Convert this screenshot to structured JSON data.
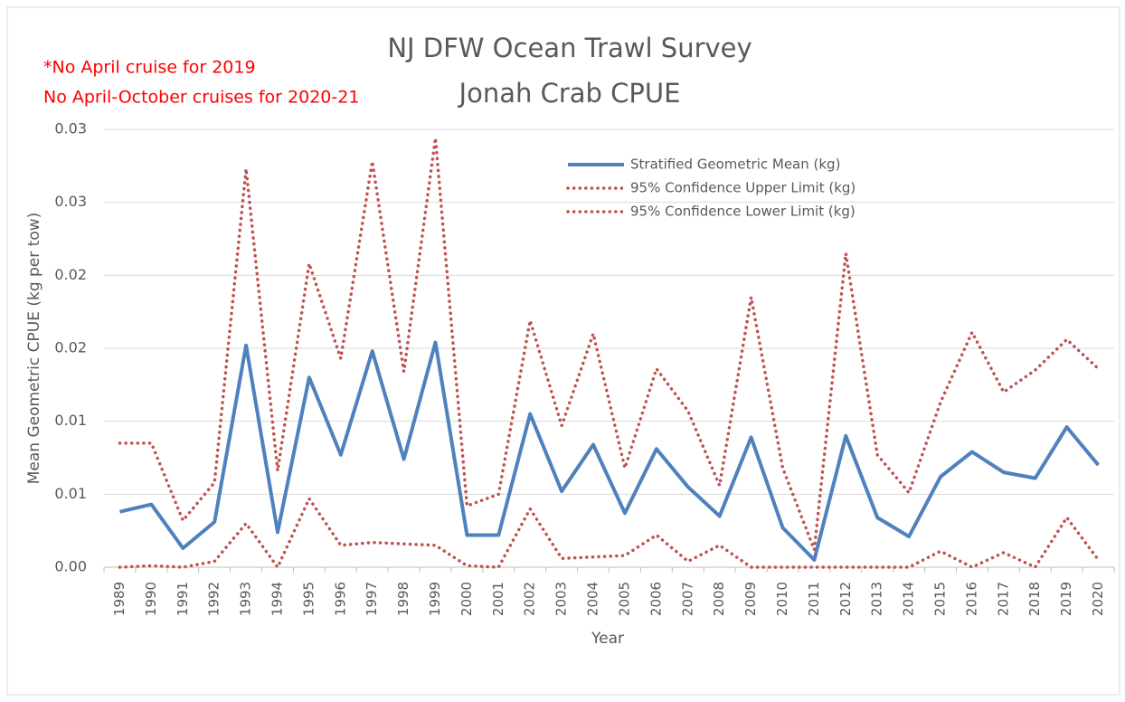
{
  "chart_data": {
    "type": "line",
    "title": "NJ DFW Ocean Trawl Survey",
    "subtitle": "Jonah Crab CPUE",
    "annotations": [
      "*No April cruise for 2019",
      "No April-October cruises for 2020-21"
    ],
    "annotation_color": "#ff0000",
    "x_label": "Year",
    "y_label": "Mean Geometric CPUE (kg per tow)",
    "categories": [
      "1989",
      "1990",
      "1991",
      "1992",
      "1993",
      "1994",
      "1995",
      "1996",
      "1997",
      "1998",
      "1999",
      "2000",
      "2001",
      "2002",
      "2003",
      "2004",
      "2005",
      "2006",
      "2007",
      "2008",
      "2009",
      "2010",
      "2011",
      "2012",
      "2013",
      "2014",
      "2015",
      "2016",
      "2017",
      "2018",
      "2019",
      "2020"
    ],
    "series": [
      {
        "name": "Stratified Geometric Mean (kg)",
        "color": "#4f81bd",
        "style": "solid",
        "values": [
          0.0038,
          0.0043,
          0.0013,
          0.0031,
          0.0152,
          0.0024,
          0.013,
          0.0077,
          0.0148,
          0.0074,
          0.0154,
          0.0022,
          0.0022,
          0.0105,
          0.0052,
          0.0084,
          0.0037,
          0.0081,
          0.0055,
          0.0035,
          0.0089,
          0.0027,
          0.0005,
          0.009,
          0.0034,
          0.0021,
          0.0062,
          0.0079,
          0.0065,
          0.0061,
          0.0096,
          0.007
        ]
      },
      {
        "name": "95% Confidence Upper Limit (kg)",
        "color": "#c0504d",
        "style": "dotted",
        "values": [
          0.0085,
          0.0085,
          0.0032,
          0.0058,
          0.0273,
          0.0066,
          0.0208,
          0.0143,
          0.0278,
          0.0134,
          0.0294,
          0.0042,
          0.005,
          0.0169,
          0.0097,
          0.016,
          0.0068,
          0.0136,
          0.0107,
          0.0056,
          0.0185,
          0.0068,
          0.0012,
          0.0215,
          0.0077,
          0.0051,
          0.0113,
          0.0161,
          0.012,
          0.0135,
          0.0156,
          0.0136
        ]
      },
      {
        "name": "95% Confidence Lower Limit (kg)",
        "color": "#c0504d",
        "style": "dotted",
        "values": [
          0,
          0.0001,
          0,
          0.0004,
          0.003,
          0,
          0.0047,
          0.0015,
          0.0017,
          0.0016,
          0.0015,
          0.0001,
          0,
          0.004,
          0.0006,
          0.0007,
          0.0008,
          0.0022,
          0.0004,
          0.0015,
          0,
          0,
          0,
          0,
          0,
          0,
          0.0011,
          0,
          0.001,
          0,
          0.0034,
          0.0005
        ]
      }
    ],
    "ylim": [
      0,
      0.03
    ],
    "yticks": [
      {
        "value": 0,
        "label": "0.00"
      },
      {
        "value": 0.005,
        "label": "0.01"
      },
      {
        "value": 0.01,
        "label": "0.01"
      },
      {
        "value": 0.015,
        "label": "0.02"
      },
      {
        "value": 0.02,
        "label": "0.02"
      },
      {
        "value": 0.025,
        "label": "0.03"
      },
      {
        "value": 0.03,
        "label": "0.03"
      }
    ],
    "grid": true,
    "legend": "top-right"
  }
}
